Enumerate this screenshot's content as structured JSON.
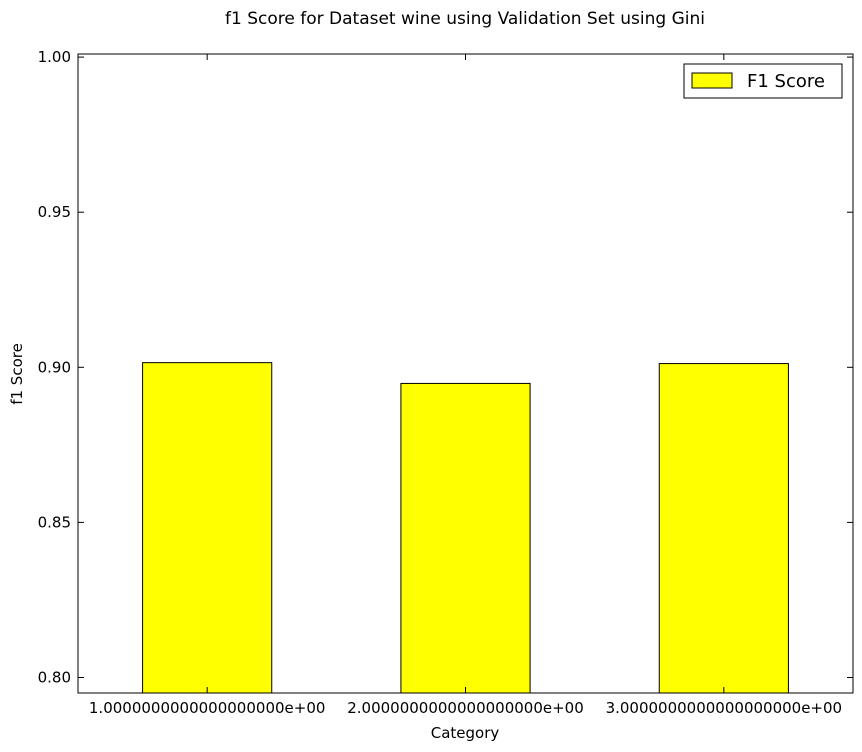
{
  "chart_data": {
    "type": "bar",
    "title": "f1 Score for Dataset wine using Validation Set using Gini",
    "xlabel": "Category",
    "ylabel": "f1 Score",
    "categories": [
      "1.0000000000000000000e+00",
      "2.0000000000000000000e+00",
      "3.0000000000000000000e+00"
    ],
    "series": [
      {
        "name": "F1 Score",
        "values": [
          0.9015,
          0.8948,
          0.9012
        ]
      }
    ],
    "ylim": [
      0.795,
      1.001
    ],
    "yticks": [
      0.8,
      0.85,
      0.9,
      0.95,
      1.0
    ],
    "ytick_labels": [
      "0.80",
      "0.85",
      "0.90",
      "0.95",
      "1.00"
    ],
    "bar_color": "#ffff00",
    "edge_color": "#000000",
    "grid": false,
    "legend_position": "top-right"
  }
}
